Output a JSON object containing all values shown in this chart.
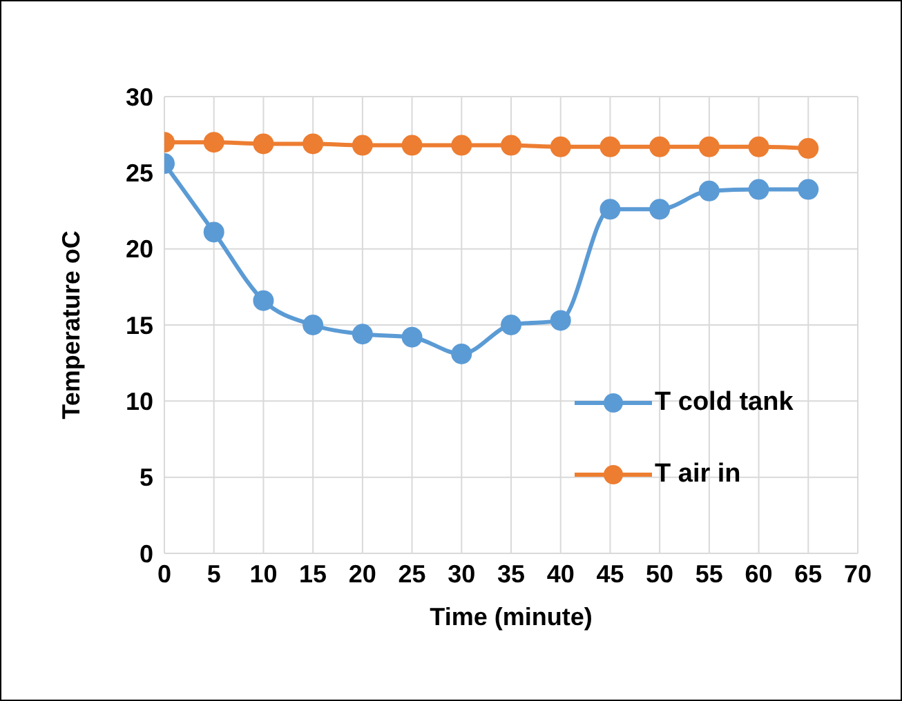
{
  "chart_data": {
    "type": "line",
    "xlabel": "Time (minute)",
    "ylabel": "Temperature oC",
    "x": [
      0,
      5,
      10,
      15,
      20,
      25,
      30,
      35,
      40,
      45,
      50,
      55,
      60,
      65
    ],
    "series": [
      {
        "name": "T cold tank",
        "color": "#5b9bd5",
        "values": [
          25.6,
          21.1,
          16.6,
          15.0,
          14.4,
          14.2,
          13.1,
          15.0,
          15.3,
          22.6,
          22.6,
          23.8,
          23.9,
          23.9
        ]
      },
      {
        "name": "T air in",
        "color": "#ed7d31",
        "values": [
          27.0,
          27.0,
          26.9,
          26.9,
          26.8,
          26.8,
          26.8,
          26.8,
          26.7,
          26.7,
          26.7,
          26.7,
          26.7,
          26.6
        ]
      }
    ],
    "xlim": [
      0,
      70
    ],
    "xticks": [
      0,
      5,
      10,
      15,
      20,
      25,
      30,
      35,
      40,
      45,
      50,
      55,
      60,
      65,
      70
    ],
    "ylim": [
      0,
      30
    ],
    "yticks": [
      0,
      5,
      10,
      15,
      20,
      25,
      30
    ],
    "grid": true,
    "legend": "right",
    "marker": "circle",
    "line_style": "solid"
  }
}
